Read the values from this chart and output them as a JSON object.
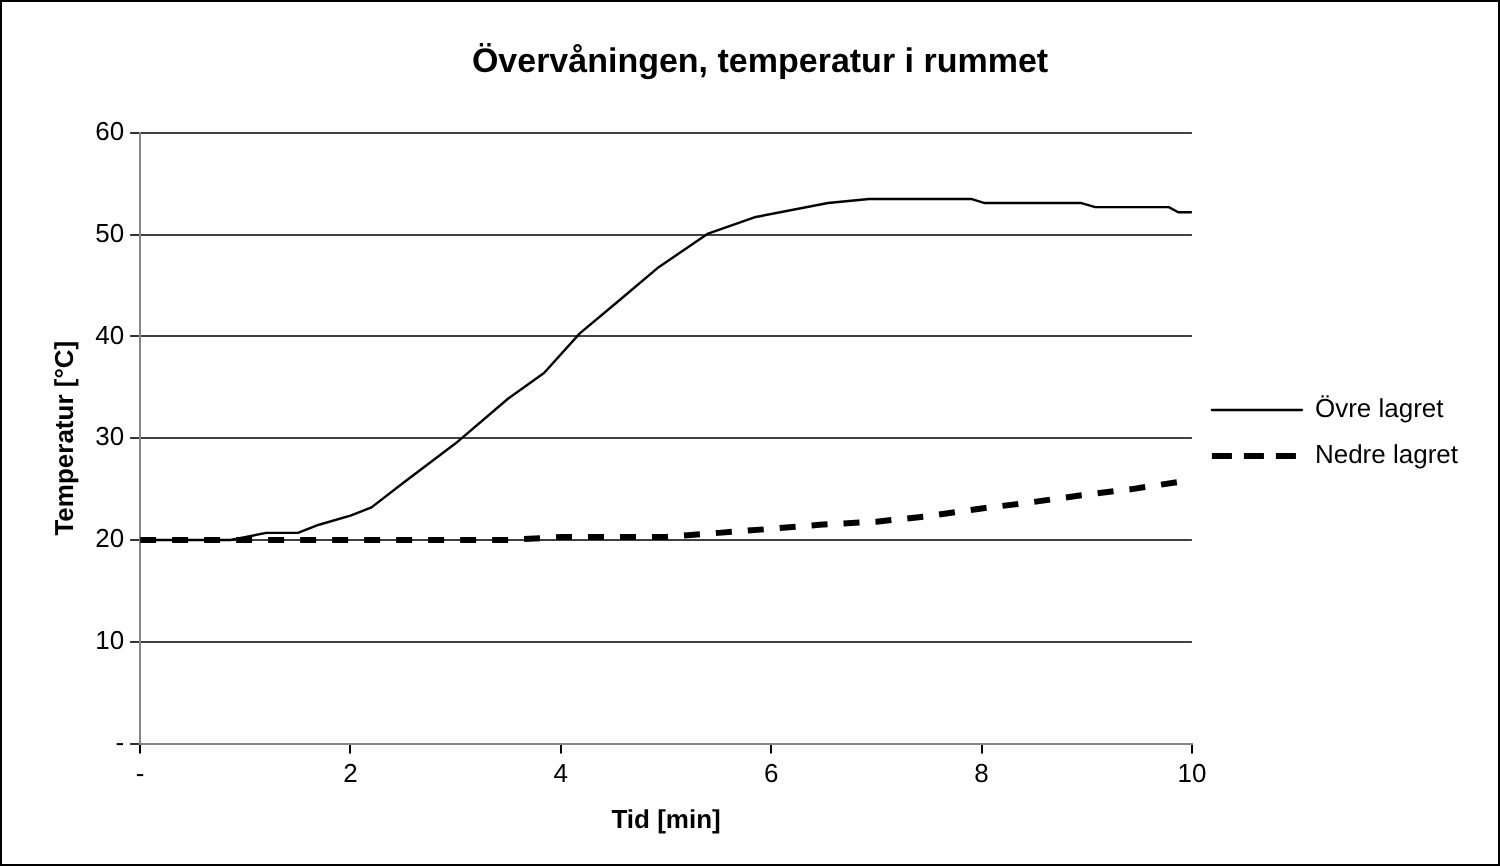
{
  "chart_data": {
    "type": "line",
    "title": "Övervåningen, temperatur i rummet",
    "xlabel": "Tid [min]",
    "ylabel": "Temperatur [°C]",
    "xlim": [
      0,
      10
    ],
    "xticks": [
      {
        "value": 0,
        "label": "-"
      },
      2,
      4,
      6,
      8,
      10
    ],
    "ylim": [
      0,
      60
    ],
    "yticks": [
      {
        "value": 0,
        "label": "-"
      },
      10,
      20,
      30,
      40,
      50,
      60
    ],
    "grid": "y",
    "legend": "right",
    "marker": "none",
    "series": [
      {
        "name": "Övre lagret",
        "color": "#000000",
        "line_style": "solid",
        "x": [
          0,
          0.86,
          1.2,
          1.5,
          1.7,
          2.0,
          2.2,
          2.5,
          3.0,
          3.5,
          3.84,
          4.18,
          4.54,
          4.93,
          5.4,
          5.84,
          6.54,
          6.93,
          7.9,
          8.03,
          8.95,
          9.08,
          9.78,
          9.87,
          10
        ],
        "values": [
          20,
          20,
          20.7,
          20.7,
          21.5,
          22.4,
          23.2,
          25.6,
          29.5,
          33.9,
          36.4,
          40.3,
          43.4,
          46.8,
          50.1,
          51.7,
          53.1,
          53.5,
          53.5,
          53.1,
          53.1,
          52.7,
          52.7,
          52.2,
          52.2
        ]
      },
      {
        "name": "Nedre lagret",
        "color": "#000000",
        "line_style": "dashed",
        "x": [
          0,
          3.5,
          4,
          5,
          5.5,
          6,
          6.46,
          7,
          7.46,
          8,
          8.47,
          8.95,
          9.43,
          10
        ],
        "values": [
          20,
          20,
          20.3,
          20.3,
          20.7,
          21.1,
          21.5,
          21.8,
          22.3,
          23.1,
          23.7,
          24.4,
          25,
          25.9
        ]
      }
    ]
  }
}
